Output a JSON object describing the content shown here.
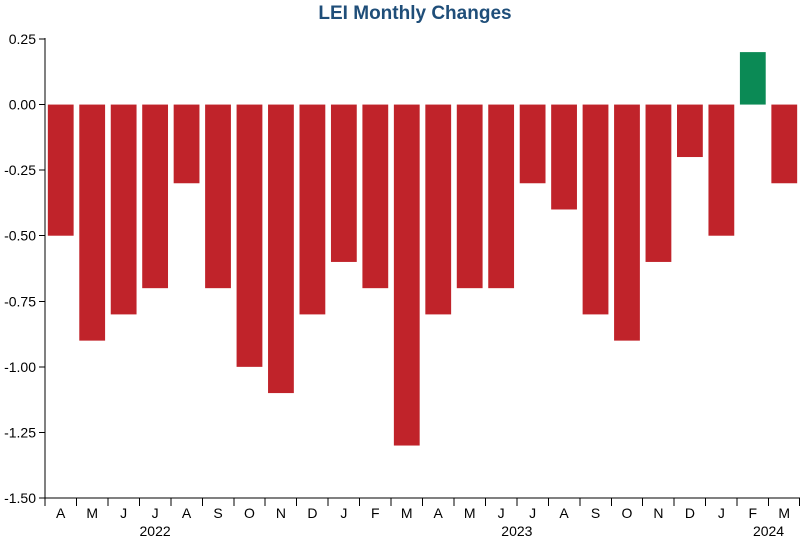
{
  "chart_data": {
    "type": "bar",
    "title": "LEI Monthly Changes",
    "xlabel": "",
    "ylabel": "",
    "ylim": [
      -1.5,
      0.25
    ],
    "yticks": [
      0.25,
      0.0,
      -0.25,
      -0.5,
      -0.75,
      -1.0,
      -1.25,
      -1.5
    ],
    "ytick_labels": [
      "0.25",
      "0.00",
      "-0.25",
      "-0.50",
      "-0.75",
      "-1.00",
      "-1.25",
      "-1.50"
    ],
    "categories": [
      "A",
      "M",
      "J",
      "J",
      "A",
      "S",
      "O",
      "N",
      "D",
      "J",
      "F",
      "M",
      "A",
      "M",
      "J",
      "J",
      "A",
      "S",
      "O",
      "N",
      "D",
      "J",
      "F",
      "M"
    ],
    "values": [
      -0.5,
      -0.9,
      -0.8,
      -0.7,
      -0.3,
      -0.7,
      -1.0,
      -1.1,
      -0.8,
      -0.6,
      -0.7,
      -1.3,
      -0.8,
      -0.7,
      -0.7,
      -0.3,
      -0.4,
      -0.8,
      -0.9,
      -0.6,
      -0.2,
      -0.5,
      0.2,
      -0.3
    ],
    "year_labels": [
      {
        "label": "2022",
        "center_index": 3
      },
      {
        "label": "2023",
        "center_index": 14.5
      },
      {
        "label": "2024",
        "center_index": 22.5
      }
    ],
    "grid": false,
    "legend": "none"
  },
  "colors": {
    "title": "#1f4e79",
    "negative_bar": "#c0232a",
    "positive_bar": "#0b8a55",
    "axis": "#000000"
  }
}
